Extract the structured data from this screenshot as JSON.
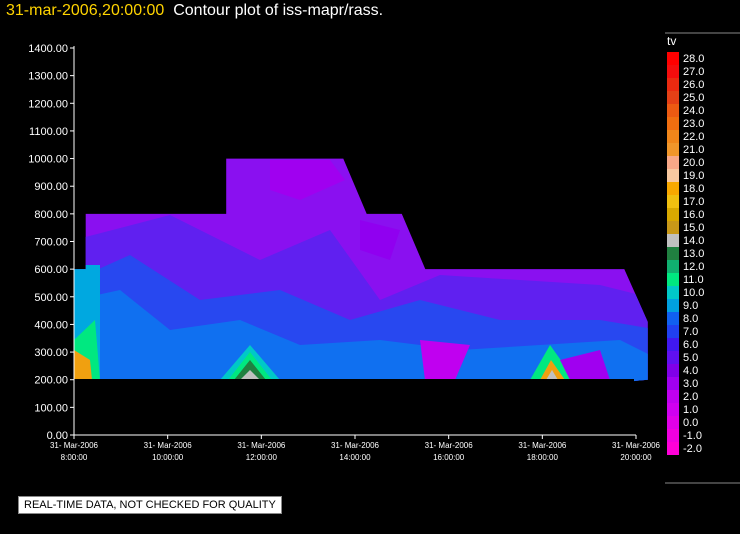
{
  "header": {
    "timestamp": "31-mar-2006,20:00:00",
    "title": "Contour plot of iss-mapr/rass."
  },
  "footer": {
    "quality_note": "REAL-TIME DATA, NOT CHECKED FOR QUALITY"
  },
  "chart_data": {
    "type": "heatmap",
    "title": "Contour plot of iss-mapr/rass.",
    "y_ticks": [
      "0.00",
      "100.00",
      "200.00",
      "300.00",
      "400.00",
      "500.00",
      "600.00",
      "700.00",
      "800.00",
      "900.00",
      "1000.00",
      "1100.00",
      "1200.00",
      "1300.00",
      "1400.00"
    ],
    "ylim": [
      0,
      1400
    ],
    "x_ticks": [
      {
        "date": "31- Mar-2006",
        "time": "8:00:00"
      },
      {
        "date": "31- Mar-2006",
        "time": "10:00:00"
      },
      {
        "date": "31- Mar-2006",
        "time": "12:00:00"
      },
      {
        "date": "31- Mar-2006",
        "time": "14:00:00"
      },
      {
        "date": "31- Mar-2006",
        "time": "16:00:00"
      },
      {
        "date": "31- Mar-2006",
        "time": "18:00:00"
      },
      {
        "date": "31- Mar-2006",
        "time": "20:00:00"
      }
    ],
    "xlim_hours": [
      8,
      20
    ],
    "grid": false,
    "legend": {
      "title": "tv",
      "placement": "right",
      "levels": [
        "28.0",
        "27.0",
        "26.0",
        "25.0",
        "24.0",
        "23.0",
        "22.0",
        "21.0",
        "20.0",
        "19.0",
        "18.0",
        "17.0",
        "16.0",
        "15.0",
        "14.0",
        "13.0",
        "12.0",
        "11.0",
        "10.0",
        "9.0",
        "8.0",
        "7.0",
        "6.0",
        "5.0",
        "4.0",
        "3.0",
        "2.0",
        "1.0",
        "0.0",
        "-1.0",
        "-2.0"
      ],
      "colors": [
        "#ff0000",
        "#f40d0d",
        "#ea2a10",
        "#e44016",
        "#ec5a12",
        "#f06e10",
        "#f0861a",
        "#f0962a",
        "#f8a888",
        "#f8c8a0",
        "#f8a800",
        "#f0c010",
        "#d8a800",
        "#c89818",
        "#c0c0c0",
        "#208040",
        "#10b070",
        "#00e880",
        "#00c8c8",
        "#00a0e0",
        "#1060f0",
        "#2040f0",
        "#4018f0",
        "#6010f0",
        "#8000e8",
        "#a000f0",
        "#c000f0",
        "#d000f0",
        "#e000e8",
        "#f000e0",
        "#ff00d8"
      ]
    },
    "envelope": [
      [
        8,
        0
      ],
      [
        8,
        600
      ],
      [
        8.25,
        600
      ],
      [
        8.25,
        800
      ],
      [
        10.25,
        800
      ],
      [
        10.25,
        800
      ],
      [
        11.25,
        800
      ],
      [
        11.25,
        1000
      ],
      [
        13.75,
        1000
      ],
      [
        14.25,
        800
      ],
      [
        15,
        800
      ],
      [
        15.5,
        600
      ],
      [
        19.75,
        600
      ],
      [
        20.25,
        410
      ],
      [
        20.25,
        200
      ]
    ],
    "data_min_height": 200
  }
}
